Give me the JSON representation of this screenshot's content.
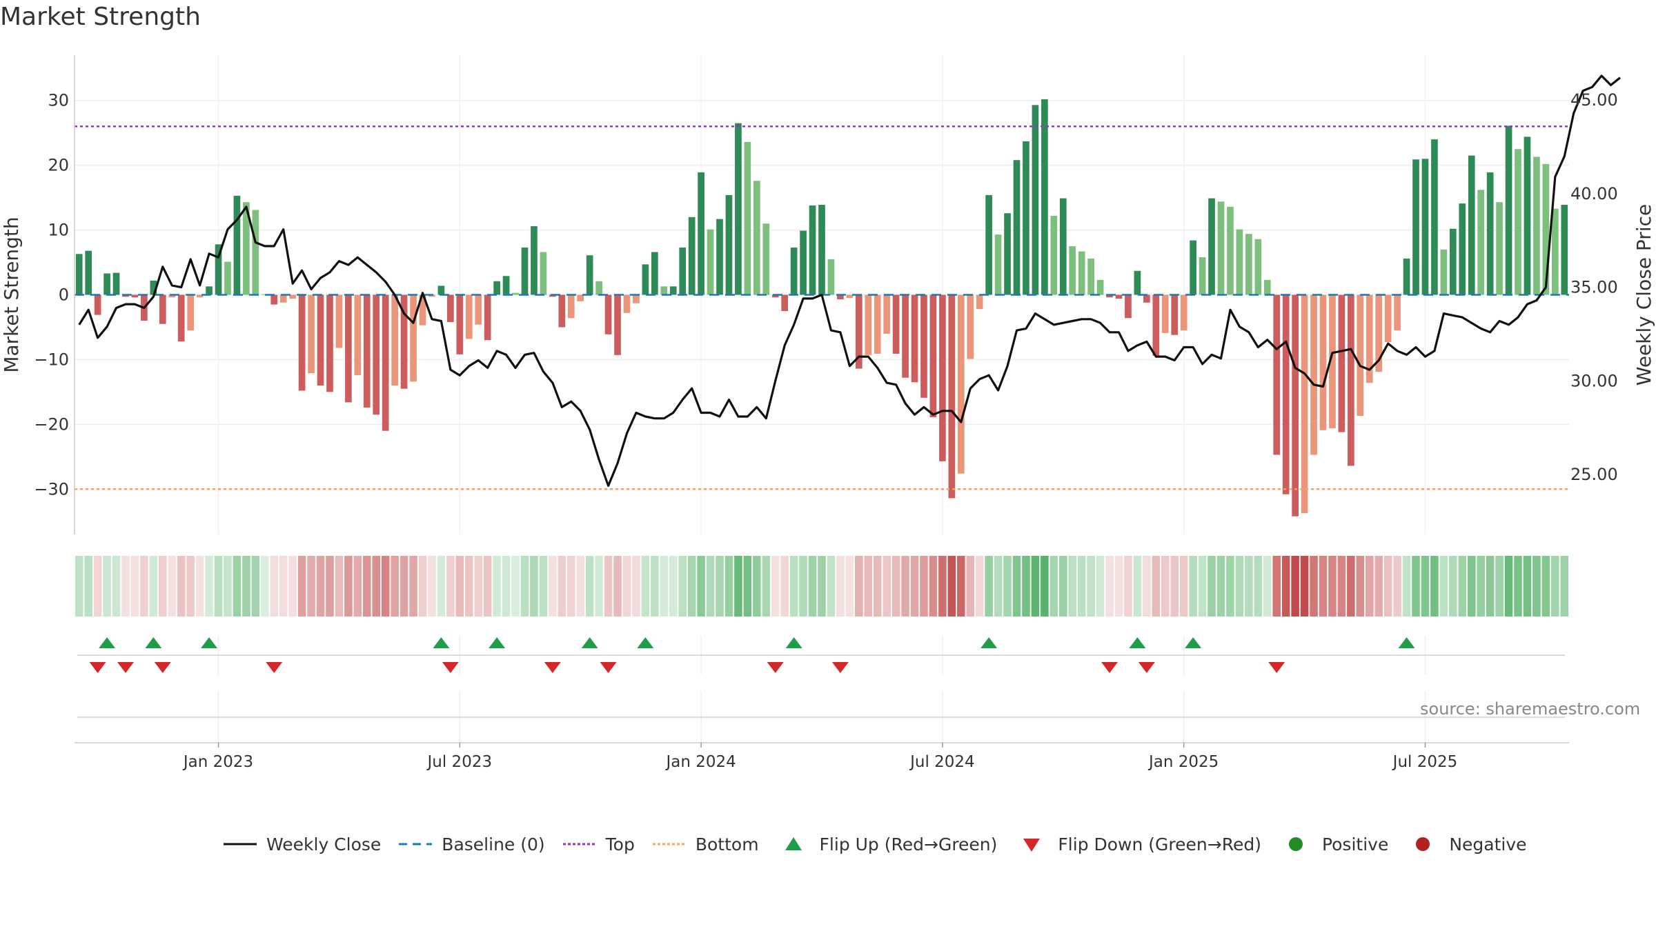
{
  "title": "Market Strength",
  "source": "source: sharemaestro.com",
  "colors": {
    "strong_green": "#2e8b57",
    "light_green": "#7dbf7d",
    "strong_red": "#cd5c5c",
    "light_red": "#e9967a",
    "price_line": "#111111",
    "baseline": "#1f77b4",
    "top_line": "#9932cc",
    "bottom_line": "#f4a460",
    "flip_up": "#1f9e4a",
    "flip_down": "#d62728",
    "positive": "#228b22",
    "negative": "#b22222"
  },
  "legend": [
    {
      "key": "weekly_close",
      "label": "Weekly Close"
    },
    {
      "key": "baseline",
      "label": "Baseline (0)"
    },
    {
      "key": "top",
      "label": "Top"
    },
    {
      "key": "bottom",
      "label": "Bottom"
    },
    {
      "key": "flip_up",
      "label": "Flip Up (Red→Green)"
    },
    {
      "key": "flip_down",
      "label": "Flip Down (Green→Red)"
    },
    {
      "key": "positive",
      "label": "Positive"
    },
    {
      "key": "negative",
      "label": "Negative"
    }
  ],
  "chart_data": {
    "type": "bar",
    "title": "Market Strength",
    "ylabel": "Market Strength",
    "y2label": "Weekly Close Price",
    "ylim": [
      -37,
      37
    ],
    "y2lim": [
      21.8,
      47.4
    ],
    "y_ticks": [
      30,
      20,
      10,
      0,
      -10,
      -20,
      -30
    ],
    "y_tick_labels": [
      "30",
      "20",
      "10",
      "0",
      "−10",
      "−20",
      "−30"
    ],
    "y2_ticks": [
      45,
      40,
      35,
      30,
      25
    ],
    "y2_tick_labels": [
      "45.00",
      "40.00",
      "35.00",
      "30.00",
      "25.00"
    ],
    "x_tick_labels": [
      "Jan 2023",
      "Jul 2023",
      "Jan 2024",
      "Jul 2024",
      "Jan 2025",
      "Jul 2025"
    ],
    "x_tick_index": [
      15,
      41,
      67,
      93,
      119,
      145
    ],
    "top_threshold": 26,
    "bottom_threshold": -30,
    "grid": true,
    "legend_position": "bottom",
    "market_strength": [
      6.3,
      6.8,
      -3.1,
      3.3,
      3.4,
      -0.3,
      -0.4,
      -4.0,
      2.2,
      -4.5,
      -0.4,
      -7.2,
      -5.5,
      -0.4,
      1.3,
      7.8,
      5.1,
      15.3,
      14.3,
      13.1,
      0.1,
      -1.5,
      -1.2,
      -0.6,
      -14.8,
      -12.1,
      -14.0,
      -15.0,
      -8.2,
      -16.6,
      -12.4,
      -17.4,
      -18.5,
      -21.0,
      -14.0,
      -14.5,
      -13.4,
      -4.7,
      -0.3,
      1.4,
      -4.2,
      -9.2,
      -6.8,
      -4.6,
      -7.0,
      2.1,
      2.9,
      0.3,
      7.3,
      10.6,
      6.6,
      -0.3,
      -5.0,
      -3.6,
      -1.0,
      6.1,
      2.1,
      -6.1,
      -9.3,
      -2.8,
      -1.3,
      4.7,
      6.6,
      1.3,
      1.3,
      7.3,
      12.0,
      18.9,
      10.1,
      11.7,
      15.4,
      26.5,
      23.6,
      17.6,
      11.0,
      -0.4,
      -2.5,
      7.3,
      9.9,
      13.8,
      13.9,
      5.5,
      -0.7,
      -0.5,
      -11.4,
      -9.3,
      -9.1,
      -6.0,
      -9.1,
      -12.8,
      -13.5,
      -15.9,
      -18.9,
      -25.7,
      -31.4,
      -27.6,
      -9.9,
      -2.2,
      15.4,
      9.3,
      12.6,
      20.8,
      23.7,
      29.3,
      30.2,
      12.2,
      14.9,
      7.5,
      6.7,
      5.6,
      2.3,
      -0.4,
      -0.6,
      -3.6,
      3.7,
      -1.2,
      -9.4,
      -5.9,
      -6.2,
      -5.5,
      8.4,
      5.8,
      14.9,
      14.4,
      13.6,
      10.1,
      9.4,
      8.6,
      2.3,
      -24.7,
      -30.8,
      -34.2,
      -33.7,
      -24.7,
      -20.9,
      -20.6,
      -21.2,
      -26.4,
      -18.7,
      -13.6,
      -11.9,
      -7.3,
      -5.5,
      5.6,
      20.9,
      21.0,
      24.0,
      7.0,
      10.2,
      14.1,
      21.5,
      16.2,
      18.9,
      14.3,
      26.1,
      22.5,
      24.4,
      21.3,
      20.2,
      13.3,
      13.9
    ],
    "weekly_close": [
      33.0,
      33.8,
      32.3,
      32.9,
      33.9,
      34.1,
      34.1,
      33.9,
      34.5,
      36.1,
      35.1,
      35.0,
      36.5,
      35.1,
      36.8,
      36.6,
      38.1,
      38.6,
      39.3,
      37.4,
      37.2,
      37.2,
      38.1,
      35.2,
      35.9,
      34.9,
      35.5,
      35.8,
      36.4,
      36.2,
      36.6,
      36.2,
      35.8,
      35.3,
      34.6,
      33.6,
      33.1,
      34.7,
      33.3,
      33.2,
      30.6,
      30.3,
      30.8,
      31.1,
      30.7,
      31.6,
      31.4,
      30.7,
      31.4,
      31.5,
      30.5,
      29.9,
      28.6,
      28.9,
      28.4,
      27.4,
      25.8,
      24.4,
      25.6,
      27.2,
      28.3,
      28.1,
      28.0,
      28.0,
      28.3,
      29.0,
      29.6,
      28.3,
      28.3,
      28.1,
      29.0,
      28.1,
      28.1,
      28.6,
      28.0,
      30.0,
      31.9,
      33.0,
      34.4,
      34.4,
      34.6,
      32.7,
      32.6,
      30.8,
      31.3,
      31.3,
      30.7,
      29.9,
      29.8,
      28.8,
      28.2,
      28.6,
      28.2,
      28.4,
      28.4,
      27.8,
      29.6,
      30.1,
      30.3,
      29.5,
      30.8,
      32.7,
      32.8,
      33.6,
      33.3,
      33.0,
      33.1,
      33.2,
      33.3,
      33.3,
      33.1,
      32.6,
      32.6,
      31.6,
      31.9,
      32.1,
      31.3,
      31.3,
      31.1,
      31.8,
      31.8,
      30.9,
      31.4,
      31.2,
      33.8,
      32.9,
      32.6,
      31.8,
      32.2,
      31.7,
      32.1,
      30.7,
      30.4,
      29.8,
      29.7,
      31.5,
      31.6,
      31.7,
      30.8,
      30.6,
      31.1,
      32.0,
      31.6,
      31.4,
      31.8,
      31.3,
      31.6,
      33.6,
      33.5,
      33.4,
      33.1,
      32.8,
      32.6,
      33.2,
      33.0,
      33.4,
      34.1,
      34.3,
      35.0,
      40.9,
      42.0,
      44.3,
      45.5,
      45.7,
      46.3,
      45.8,
      46.2
    ]
  }
}
